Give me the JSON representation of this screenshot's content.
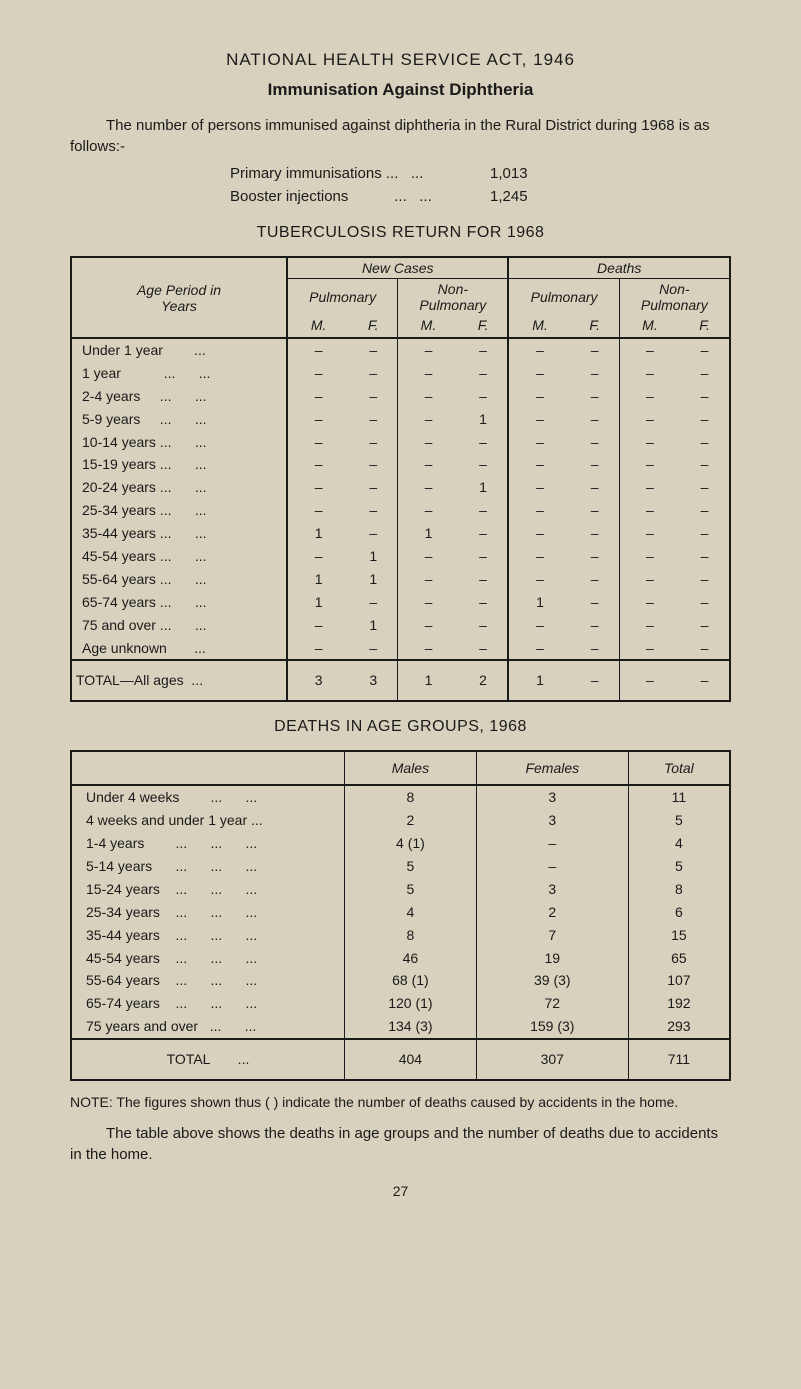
{
  "colors": {
    "background": "#d8d1bd",
    "text": "#1a1a1a",
    "border": "#1a1a1a"
  },
  "typography": {
    "body_fontsize": 15,
    "title_fontsize": 17,
    "table_fontsize": 14
  },
  "headings": {
    "main": "NATIONAL HEALTH SERVICE ACT, 1946",
    "sub": "Immunisation Against Diphtheria",
    "tb_return": "TUBERCULOSIS RETURN FOR 1968",
    "deaths_groups": "DEATHS IN AGE GROUPS, 1968"
  },
  "intro_text": "The number of persons immunised against diphtheria in the Rural District during 1968 is as follows:-",
  "immunisations": [
    {
      "label": "Primary immunisations ...   ...",
      "value": "1,013"
    },
    {
      "label": "Booster injections           ...   ...",
      "value": "1,245"
    }
  ],
  "tb_table": {
    "age_period_label": "Age Period in\nYears",
    "new_cases": "New Cases",
    "deaths": "Deaths",
    "pulmonary": "Pulmonary",
    "non_pulmonary": "Non-\nPulmonary",
    "m": "M.",
    "f": "F.",
    "rows": [
      {
        "label": "Under 1 year        ...",
        "cells": [
          "–",
          "–",
          "–",
          "–",
          "–",
          "–",
          "–",
          "–"
        ]
      },
      {
        "label": "1 year           ...      ...",
        "cells": [
          "–",
          "–",
          "–",
          "–",
          "–",
          "–",
          "–",
          "–"
        ]
      },
      {
        "label": "2-4 years     ...      ...",
        "cells": [
          "–",
          "–",
          "–",
          "–",
          "–",
          "–",
          "–",
          "–"
        ]
      },
      {
        "label": "5-9 years     ...      ...",
        "cells": [
          "–",
          "–",
          "–",
          "1",
          "–",
          "–",
          "–",
          "–"
        ]
      },
      {
        "label": "10-14 years ...      ...",
        "cells": [
          "–",
          "–",
          "–",
          "–",
          "–",
          "–",
          "–",
          "–"
        ]
      },
      {
        "label": "15-19 years ...      ...",
        "cells": [
          "–",
          "–",
          "–",
          "–",
          "–",
          "–",
          "–",
          "–"
        ]
      },
      {
        "label": "20-24 years ...      ...",
        "cells": [
          "–",
          "–",
          "–",
          "1",
          "–",
          "–",
          "–",
          "–"
        ]
      },
      {
        "label": "25-34 years ...      ...",
        "cells": [
          "–",
          "–",
          "–",
          "–",
          "–",
          "–",
          "–",
          "–"
        ]
      },
      {
        "label": "35-44 years ...      ...",
        "cells": [
          "1",
          "–",
          "1",
          "–",
          "–",
          "–",
          "–",
          "–"
        ]
      },
      {
        "label": "45-54 years ...      ...",
        "cells": [
          "–",
          "1",
          "–",
          "–",
          "–",
          "–",
          "–",
          "–"
        ]
      },
      {
        "label": "55-64 years ...      ...",
        "cells": [
          "1",
          "1",
          "–",
          "–",
          "–",
          "–",
          "–",
          "–"
        ]
      },
      {
        "label": "65-74 years ...      ...",
        "cells": [
          "1",
          "–",
          "–",
          "–",
          "1",
          "–",
          "–",
          "–"
        ]
      },
      {
        "label": "75 and over ...      ...",
        "cells": [
          "–",
          "1",
          "–",
          "–",
          "–",
          "–",
          "–",
          "–"
        ]
      },
      {
        "label": "Age unknown       ...",
        "cells": [
          "–",
          "–",
          "–",
          "–",
          "–",
          "–",
          "–",
          "–"
        ]
      }
    ],
    "total_label": "TOTAL—All ages  ...",
    "total_cells": [
      "3",
      "3",
      "1",
      "2",
      "1",
      "–",
      "–",
      "–"
    ]
  },
  "deaths_table": {
    "columns": [
      "",
      "Males",
      "Females",
      "Total"
    ],
    "rows": [
      {
        "label": "Under 4 weeks        ...      ...",
        "males": "8",
        "females": "3",
        "total": "11"
      },
      {
        "label": "4 weeks and under 1 year ...",
        "males": "2",
        "females": "3",
        "total": "5"
      },
      {
        "label": "1-4 years        ...      ...      ...",
        "males": "4 (1)",
        "females": "–",
        "total": "4"
      },
      {
        "label": "5-14 years      ...      ...      ...",
        "males": "5",
        "females": "–",
        "total": "5"
      },
      {
        "label": "15-24 years    ...      ...      ...",
        "males": "5",
        "females": "3",
        "total": "8"
      },
      {
        "label": "25-34 years    ...      ...      ...",
        "males": "4",
        "females": "2",
        "total": "6"
      },
      {
        "label": "35-44 years    ...      ...      ...",
        "males": "8",
        "females": "7",
        "total": "15"
      },
      {
        "label": "45-54 years    ...      ...      ...",
        "males": "46",
        "females": "19",
        "total": "65"
      },
      {
        "label": "55-64 years    ...      ...      ...",
        "males": "68 (1)",
        "females": "39 (3)",
        "total": "107"
      },
      {
        "label": "65-74 years    ...      ...      ...",
        "males": "120 (1)",
        "females": "72",
        "total": "192"
      },
      {
        "label": "75 years and over   ...      ...",
        "males": "134 (3)",
        "females": "159 (3)",
        "total": "293"
      }
    ],
    "total_label": "TOTAL       ...",
    "total_males": "404",
    "total_females": "307",
    "total_total": "711"
  },
  "note": "NOTE: The figures shown thus ( ) indicate the number of deaths caused by accidents in the home.",
  "closing": "The table above shows the deaths in age groups and the number of deaths due to accidents in the home.",
  "page_number": "27"
}
